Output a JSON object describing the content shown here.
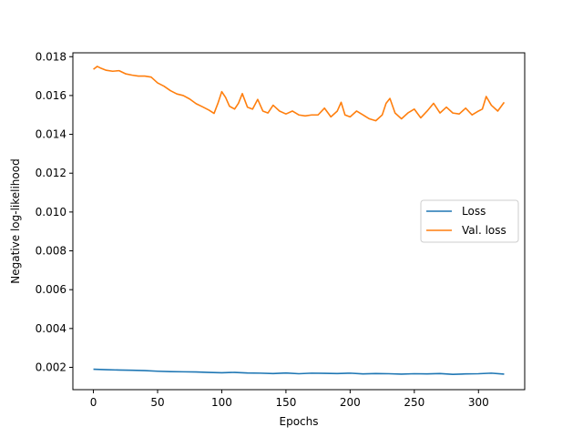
{
  "chart_data": {
    "type": "line",
    "title": "",
    "xlabel": "Epochs",
    "ylabel": "Negative log-likelihood",
    "xlim": [
      -16,
      336
    ],
    "ylim": [
      0.00085,
      0.0182
    ],
    "xticks": [
      0,
      50,
      100,
      150,
      200,
      250,
      300
    ],
    "yticks": [
      0.002,
      0.004,
      0.006,
      0.008,
      0.01,
      0.012,
      0.014,
      0.016,
      0.018
    ],
    "xtick_labels": [
      "0",
      "50",
      "100",
      "150",
      "200",
      "250",
      "300"
    ],
    "ytick_labels": [
      "0.002",
      "0.004",
      "0.006",
      "0.008",
      "0.010",
      "0.012",
      "0.014",
      "0.016",
      "0.018"
    ],
    "grid": false,
    "legend": {
      "placement": "center-right"
    },
    "series": [
      {
        "name": "Loss",
        "color": "#1f77b4",
        "x": [
          0,
          10,
          20,
          30,
          40,
          50,
          60,
          70,
          80,
          90,
          100,
          110,
          120,
          130,
          140,
          150,
          160,
          170,
          180,
          190,
          200,
          210,
          220,
          230,
          240,
          250,
          260,
          270,
          280,
          290,
          300,
          310,
          320
        ],
        "y": [
          0.0019,
          0.00188,
          0.00186,
          0.00185,
          0.00183,
          0.0018,
          0.00178,
          0.00177,
          0.00176,
          0.00174,
          0.00172,
          0.00174,
          0.00171,
          0.0017,
          0.00168,
          0.00171,
          0.00167,
          0.0017,
          0.00169,
          0.00168,
          0.0017,
          0.00166,
          0.00168,
          0.00167,
          0.00165,
          0.00167,
          0.00166,
          0.00168,
          0.00164,
          0.00166,
          0.00167,
          0.0017,
          0.00165
        ]
      },
      {
        "name": "Val. loss",
        "color": "#ff7f0e",
        "x": [
          0,
          3,
          6,
          10,
          15,
          20,
          25,
          30,
          35,
          40,
          45,
          50,
          55,
          60,
          65,
          70,
          75,
          80,
          85,
          90,
          94,
          97,
          100,
          103,
          106,
          110,
          113,
          116,
          120,
          124,
          128,
          132,
          136,
          140,
          145,
          150,
          155,
          160,
          165,
          170,
          175,
          180,
          185,
          190,
          193,
          196,
          200,
          205,
          210,
          215,
          220,
          225,
          228,
          231,
          235,
          240,
          245,
          250,
          255,
          260,
          265,
          270,
          275,
          280,
          285,
          290,
          295,
          300,
          303,
          306,
          310,
          315,
          320
        ],
        "y": [
          0.01735,
          0.0175,
          0.0174,
          0.0173,
          0.01725,
          0.01728,
          0.01712,
          0.01705,
          0.017,
          0.017,
          0.01695,
          0.01665,
          0.01648,
          0.01625,
          0.01608,
          0.016,
          0.01582,
          0.01558,
          0.01542,
          0.01525,
          0.01508,
          0.0156,
          0.0162,
          0.0159,
          0.01545,
          0.0153,
          0.0156,
          0.0161,
          0.0154,
          0.0153,
          0.0158,
          0.0152,
          0.0151,
          0.0155,
          0.0152,
          0.01505,
          0.0152,
          0.015,
          0.01495,
          0.015,
          0.015,
          0.01535,
          0.0149,
          0.0152,
          0.01565,
          0.015,
          0.0149,
          0.0152,
          0.015,
          0.0148,
          0.0147,
          0.015,
          0.0156,
          0.01585,
          0.0151,
          0.0148,
          0.0151,
          0.0153,
          0.01485,
          0.0152,
          0.0156,
          0.0151,
          0.0154,
          0.0151,
          0.01505,
          0.01535,
          0.015,
          0.0152,
          0.0153,
          0.01595,
          0.0155,
          0.0152,
          0.01565
        ]
      }
    ]
  }
}
